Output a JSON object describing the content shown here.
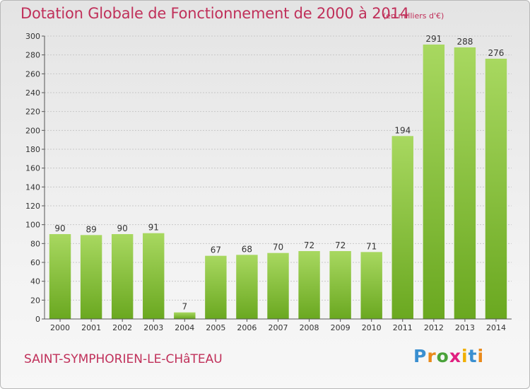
{
  "header": {
    "title": "Dotation Globale de Fonctionnement de 2000 à 2014",
    "subtitle": "(en milliers d'€)"
  },
  "footer": {
    "commune": "SAINT-SYMPHORIEN-LE-CHâTEAU",
    "logo_letters": [
      "P",
      "r",
      "o",
      "x",
      "i",
      "t",
      "i"
    ],
    "logo_colors": [
      "#3a8fd0",
      "#e98a1b",
      "#4aa23a",
      "#e02080",
      "#f0b000",
      "#3a8fd0",
      "#e98a1b"
    ]
  },
  "colors": {
    "bar_light": "#a8d860",
    "bar_dark": "#6aa820",
    "title": "#c0305a",
    "grid": "#c8c8c8"
  },
  "chart_data": {
    "type": "bar",
    "title": "Dotation Globale de Fonctionnement de 2000 à 2014",
    "subtitle": "(en milliers d'€)",
    "categories": [
      "2000",
      "2001",
      "2002",
      "2003",
      "2004",
      "2005",
      "2006",
      "2007",
      "2008",
      "2009",
      "2010",
      "2011",
      "2012",
      "2013",
      "2014"
    ],
    "values": [
      90,
      89,
      90,
      91,
      7,
      67,
      68,
      70,
      72,
      72,
      71,
      194,
      291,
      288,
      276
    ],
    "yticks": [
      0,
      20,
      40,
      60,
      80,
      100,
      120,
      140,
      160,
      180,
      200,
      220,
      240,
      260,
      280,
      300
    ],
    "ylim": [
      0,
      300
    ],
    "grid": true,
    "xlabel": "",
    "ylabel": ""
  }
}
